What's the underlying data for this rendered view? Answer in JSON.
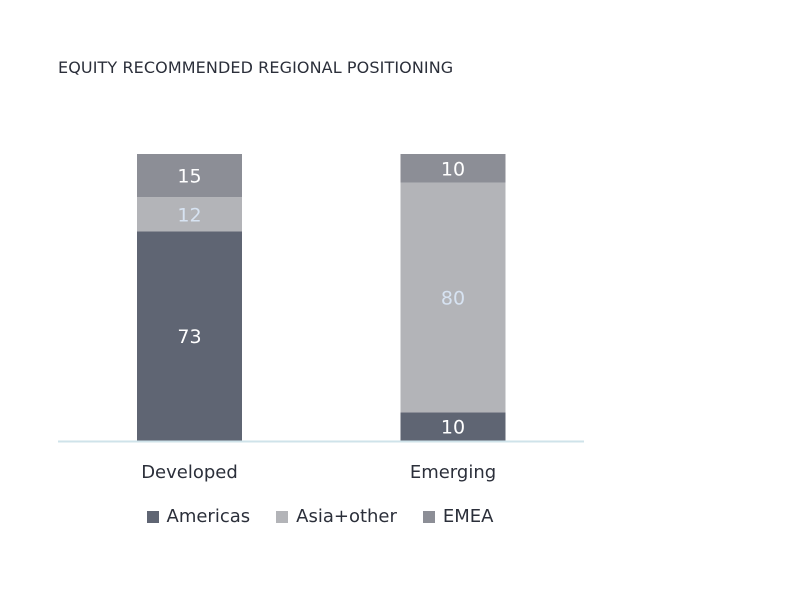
{
  "chart_data": {
    "type": "bar",
    "stacked": true,
    "percent_stacked": true,
    "title": "EQUITY RECOMMENDED REGIONAL POSITIONING",
    "xlabel": "",
    "ylabel": "",
    "ylim": [
      0,
      100
    ],
    "grid": false,
    "legend_position": "bottom",
    "categories": [
      "Developed",
      "Emerging"
    ],
    "series": [
      {
        "name": "Americas",
        "values": [
          73,
          10
        ],
        "color": "#5f6573",
        "label_color": "#ffffff"
      },
      {
        "name": "Asia+other",
        "values": [
          12,
          80
        ],
        "color": "#b3b4b8",
        "label_color": "#d7e3f2"
      },
      {
        "name": "EMEA",
        "values": [
          15,
          10
        ],
        "color": "#8c8e96",
        "label_color": "#ffffff"
      }
    ],
    "axis_color": "#cfe3ea"
  }
}
